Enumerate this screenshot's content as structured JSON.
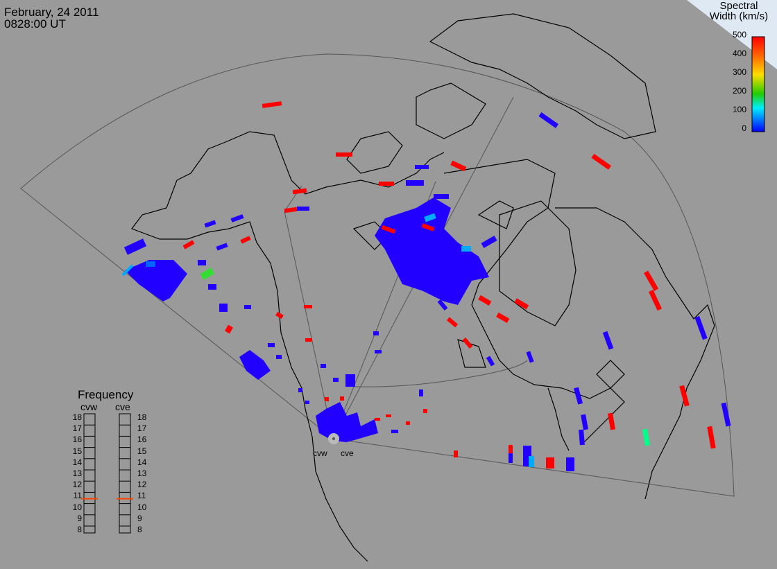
{
  "header": {
    "date": "February, 24 2011",
    "time": "0828:00 UT"
  },
  "colorbar": {
    "title_line1": "Spectral",
    "title_line2": "Width (km/s)",
    "ticks": [
      "500",
      "400",
      "300",
      "200",
      "100",
      "0"
    ],
    "colors": [
      "#ff0000",
      "#ff8800",
      "#ffff00",
      "#00cc00",
      "#00ffff",
      "#0000ff"
    ]
  },
  "frequency_panel": {
    "title": "Frequency",
    "left_label": "cvw",
    "right_label": "cve",
    "scale": [
      "18",
      "17",
      "16",
      "15",
      "14",
      "13",
      "12",
      "11",
      "10",
      "9",
      "8"
    ],
    "cvw_value_mhz": 10.8,
    "cve_value_mhz": 10.8,
    "marker_color": "#ff4400"
  },
  "radars": {
    "west": "cvw",
    "east": "cve"
  },
  "colors": {
    "background": "#9a9a9a",
    "low_width": "#2200ff",
    "high_width": "#ff0000",
    "mid_cyan": "#00aaff",
    "mid_green": "#33dd33",
    "coast": "#000000"
  }
}
